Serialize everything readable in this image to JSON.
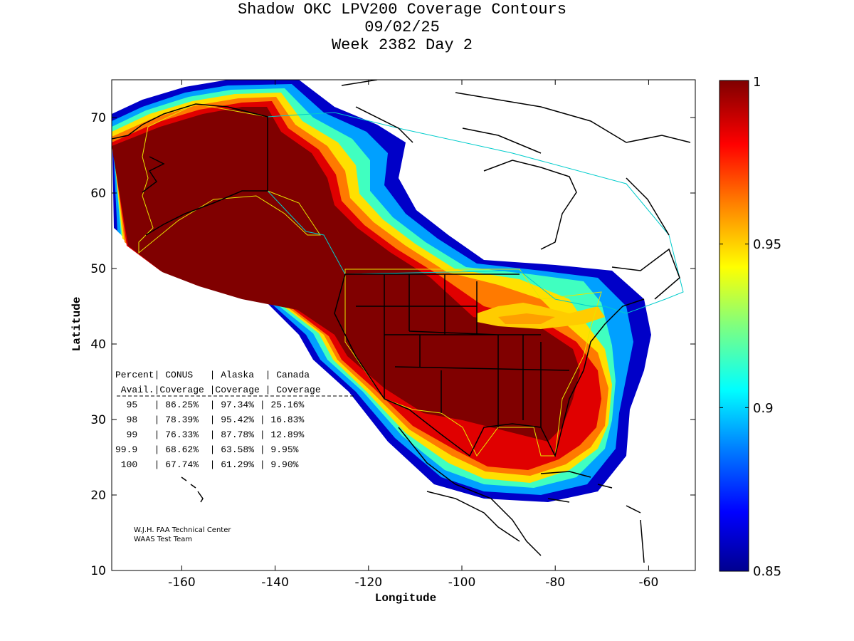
{
  "header": {
    "title_line1": "Shadow OKC LPV200 Coverage Contours",
    "title_line2": "09/02/25",
    "title_line3": "Week 2382 Day 2"
  },
  "axes": {
    "xlabel": "Longitude",
    "ylabel": "Latitude",
    "xlim": [
      -175,
      -50
    ],
    "ylim": [
      10,
      75
    ],
    "xticks": [
      "-160",
      "-140",
      "-120",
      "-100",
      "-80",
      "-60"
    ],
    "yticks": [
      "10",
      "20",
      "30",
      "40",
      "50",
      "60",
      "70"
    ]
  },
  "colorbar": {
    "min": 0.85,
    "max": 1,
    "labels": [
      "1",
      "0.95",
      "0.9",
      "0.85"
    ],
    "colors": [
      "#00008f",
      "#0000ff",
      "#007fff",
      "#00ffff",
      "#7fff7f",
      "#ffff00",
      "#ff7f00",
      "#ff0000",
      "#7f0000"
    ]
  },
  "coverage_table": {
    "header1": "Percent| CONUS   | Alaska  | Canada",
    "header2": " Avail.|Coverage |Coverage | Coverage",
    "rows": [
      "  95   | 86.25%  | 97.34% | 25.16%",
      "  98   | 78.39%  | 95.42% | 16.83%",
      "  99   | 76.33%  | 87.78% | 12.89%",
      "99.9   | 68.62%  | 63.58% | 9.95%",
      " 100   | 67.74%  | 61.29% | 9.90%"
    ]
  },
  "credit": {
    "line1": "W.J.H. FAA Technical Center",
    "line2": "WAAS Test Team"
  },
  "chart_data": {
    "type": "heatmap",
    "title": "Shadow OKC LPV200 Coverage Contours",
    "xlabel": "Longitude",
    "ylabel": "Latitude",
    "xlim": [
      -175,
      -50
    ],
    "ylim": [
      10,
      75
    ],
    "colorbar_range": [
      0.85,
      1
    ],
    "coverage_percent": {
      "columns": [
        "CONUS",
        "Alaska",
        "Canada"
      ],
      "rows": [
        {
          "avail": "95",
          "values": [
            86.25,
            97.34,
            25.16
          ]
        },
        {
          "avail": "98",
          "values": [
            78.39,
            95.42,
            16.83
          ]
        },
        {
          "avail": "99",
          "values": [
            76.33,
            87.78,
            12.89
          ]
        },
        {
          "avail": "99.9",
          "values": [
            68.62,
            63.58,
            9.95
          ]
        },
        {
          "avail": "100",
          "values": [
            67.74,
            61.29,
            9.9
          ]
        }
      ]
    }
  }
}
